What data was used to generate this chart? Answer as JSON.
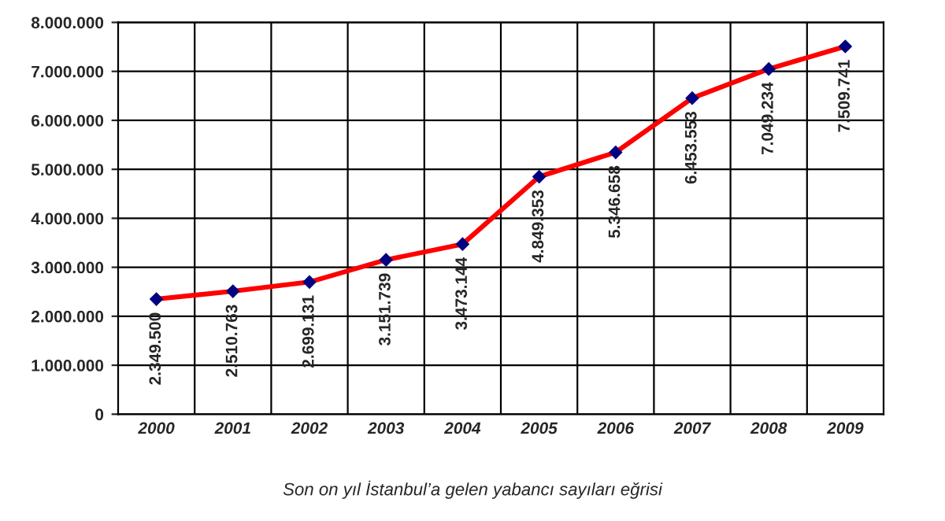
{
  "chart_data": {
    "type": "line",
    "categories": [
      "2000",
      "2001",
      "2002",
      "2003",
      "2004",
      "2005",
      "2006",
      "2007",
      "2008",
      "2009"
    ],
    "series": [
      {
        "color": "#ff0000",
        "values": [
          2349500,
          2510763,
          2699131,
          3151739,
          3473144,
          4849353,
          5346658,
          6453553,
          7049234,
          7509741
        ],
        "value_labels": [
          "2.349.500",
          "2.510.763",
          "2.699.131",
          "3.151.739",
          "3.473.144",
          "4.849.353",
          "5.346.658",
          "6.453.553",
          "7.049.234",
          "7.509.741"
        ]
      }
    ],
    "ylim": [
      0,
      8000000
    ],
    "yticks": [
      0,
      {
        "value": 1000000,
        "label": "1.000.000"
      },
      {
        "value": 2000000,
        "label": "2.000.000"
      },
      {
        "value": 3000000,
        "label": "3.000.000"
      },
      {
        "value": 4000000,
        "label": "4.000.000"
      },
      {
        "value": 5000000,
        "label": "5.000.000"
      },
      {
        "value": 6000000,
        "label": "6.000.000"
      },
      {
        "value": 7000000,
        "label": "7.000.000"
      },
      {
        "value": 8000000,
        "label": "8.000.000"
      }
    ],
    "grid": true,
    "marker": "diamond",
    "line_style": "solid",
    "legend": false,
    "annotations": [
      "Son on yıl İstanbul’a gelen yabancı sayıları eğrisi"
    ]
  }
}
